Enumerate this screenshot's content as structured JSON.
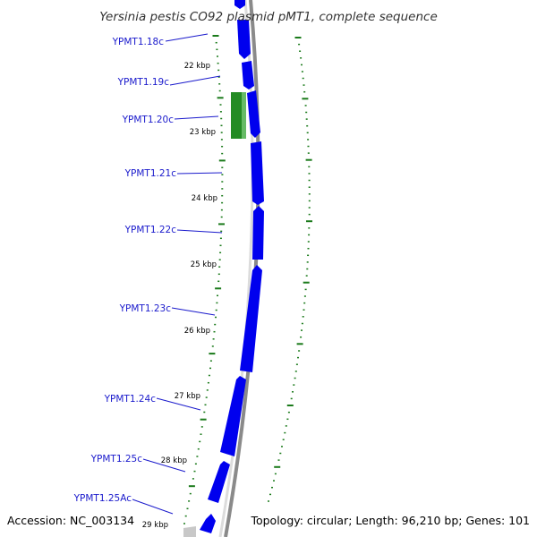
{
  "title": "Yersinia pestis CO92 plasmid pMT1, complete sequence",
  "accession_text": "Accession: NC_003134",
  "topology_text": "Topology: circular; Length: 96,210 bp; Genes: 101",
  "colors": {
    "gene_forward": "#0000ee",
    "gene_reverse_highlight": "#238b23",
    "backbone": "#808080",
    "tick": "#1a7a1a",
    "label": "#1a1acc"
  },
  "genes": [
    {
      "name": "YPMT1.18c"
    },
    {
      "name": "YPMT1.19c"
    },
    {
      "name": "YPMT1.20c"
    },
    {
      "name": "YPMT1.21c"
    },
    {
      "name": "YPMT1.22c"
    },
    {
      "name": "YPMT1.23c"
    },
    {
      "name": "YPMT1.24c"
    },
    {
      "name": "YPMT1.25c"
    },
    {
      "name": "YPMT1.25Ac"
    }
  ],
  "ticks": [
    {
      "label": "22 kbp"
    },
    {
      "label": "23 kbp"
    },
    {
      "label": "24 kbp"
    },
    {
      "label": "25 kbp"
    },
    {
      "label": "26 kbp"
    },
    {
      "label": "27 kbp"
    },
    {
      "label": "28 kbp"
    },
    {
      "label": "29 kbp"
    }
  ]
}
